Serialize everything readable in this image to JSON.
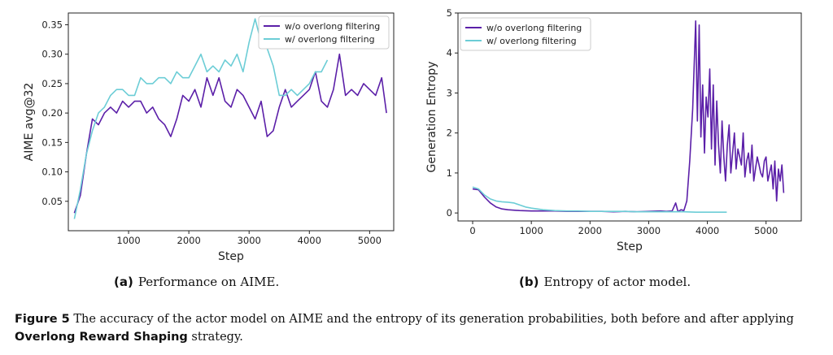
{
  "figure": {
    "subcaption_a_label": "(a)",
    "subcaption_a_text": "Performance on AIME.",
    "subcaption_b_label": "(b)",
    "subcaption_b_text": "Entropy of actor model.",
    "caption_label": "Figure 5",
    "caption_text_1": "The accuracy of the actor model on AIME and the entropy of its generation probabilities, both before and after applying",
    "caption_bold": "Overlong Reward Shaping",
    "caption_text_2": "strategy."
  },
  "chart_data": [
    {
      "type": "line",
      "title": "",
      "xlabel": "Step",
      "ylabel": "AIME avg@32",
      "xlim": [
        0,
        5400
      ],
      "ylim": [
        0.0,
        0.37
      ],
      "xticks": [
        1000,
        2000,
        3000,
        4000,
        5000
      ],
      "yticks": [
        0.05,
        0.1,
        0.15,
        0.2,
        0.25,
        0.3,
        0.35
      ],
      "legend_position": "top-right",
      "series": [
        {
          "name": "w/o overlong filtering",
          "color": "#5b1fa8",
          "x": [
            100,
            200,
            300,
            400,
            500,
            600,
            700,
            800,
            900,
            1000,
            1100,
            1200,
            1300,
            1400,
            1500,
            1600,
            1700,
            1800,
            1900,
            2000,
            2100,
            2200,
            2300,
            2400,
            2500,
            2600,
            2700,
            2800,
            2900,
            3000,
            3100,
            3200,
            3300,
            3400,
            3500,
            3600,
            3700,
            3800,
            3900,
            4000,
            4100,
            4200,
            4300,
            4400,
            4500,
            4600,
            4700,
            4800,
            4900,
            5000,
            5100,
            5200,
            5280
          ],
          "y": [
            0.03,
            0.06,
            0.13,
            0.19,
            0.18,
            0.2,
            0.21,
            0.2,
            0.22,
            0.21,
            0.22,
            0.22,
            0.2,
            0.21,
            0.19,
            0.18,
            0.16,
            0.19,
            0.23,
            0.22,
            0.24,
            0.21,
            0.26,
            0.23,
            0.26,
            0.22,
            0.21,
            0.24,
            0.23,
            0.21,
            0.19,
            0.22,
            0.16,
            0.17,
            0.21,
            0.24,
            0.21,
            0.22,
            0.23,
            0.24,
            0.27,
            0.22,
            0.21,
            0.24,
            0.3,
            0.23,
            0.24,
            0.23,
            0.25,
            0.24,
            0.23,
            0.26,
            0.2
          ]
        },
        {
          "name": "w/ overlong filtering",
          "color": "#6ccdd6",
          "x": [
            100,
            200,
            300,
            400,
            500,
            600,
            700,
            800,
            900,
            1000,
            1100,
            1200,
            1300,
            1400,
            1500,
            1600,
            1700,
            1800,
            1900,
            2000,
            2100,
            2200,
            2300,
            2400,
            2500,
            2600,
            2700,
            2800,
            2900,
            3000,
            3100,
            3200,
            3300,
            3400,
            3500,
            3600,
            3700,
            3800,
            3900,
            4000,
            4100,
            4200,
            4300
          ],
          "y": [
            0.02,
            0.07,
            0.13,
            0.17,
            0.2,
            0.21,
            0.23,
            0.24,
            0.24,
            0.23,
            0.23,
            0.26,
            0.25,
            0.25,
            0.26,
            0.26,
            0.25,
            0.27,
            0.26,
            0.26,
            0.28,
            0.3,
            0.27,
            0.28,
            0.27,
            0.29,
            0.28,
            0.3,
            0.27,
            0.32,
            0.36,
            0.32,
            0.31,
            0.28,
            0.23,
            0.23,
            0.24,
            0.23,
            0.24,
            0.25,
            0.27,
            0.27,
            0.29
          ]
        }
      ]
    },
    {
      "type": "line",
      "title": "",
      "xlabel": "Step",
      "ylabel": "Generation Entropy",
      "xlim": [
        -250,
        5600
      ],
      "ylim": [
        -0.2,
        5.0
      ],
      "xticks": [
        0,
        1000,
        2000,
        3000,
        4000,
        5000
      ],
      "yticks": [
        0,
        1,
        2,
        3,
        4,
        5
      ],
      "legend_position": "top-left",
      "series": [
        {
          "name": "w/o overlong filtering",
          "color": "#5b1fa8",
          "x": [
            0,
            100,
            200,
            300,
            400,
            500,
            600,
            800,
            1000,
            1200,
            1400,
            1600,
            1800,
            2000,
            2200,
            2400,
            2600,
            2800,
            3000,
            3200,
            3300,
            3400,
            3460,
            3500,
            3550,
            3600,
            3650,
            3700,
            3750,
            3800,
            3830,
            3860,
            3890,
            3920,
            3950,
            3980,
            4010,
            4040,
            4070,
            4100,
            4130,
            4160,
            4190,
            4220,
            4250,
            4280,
            4310,
            4340,
            4370,
            4400,
            4430,
            4460,
            4490,
            4520,
            4550,
            4580,
            4610,
            4640,
            4670,
            4700,
            4730,
            4760,
            4790,
            4820,
            4850,
            4880,
            4910,
            4940,
            4970,
            5000,
            5030,
            5060,
            5090,
            5120,
            5150,
            5180,
            5210,
            5240,
            5270,
            5300
          ],
          "y": [
            0.6,
            0.58,
            0.4,
            0.25,
            0.15,
            0.1,
            0.08,
            0.06,
            0.05,
            0.05,
            0.05,
            0.04,
            0.04,
            0.04,
            0.04,
            0.03,
            0.04,
            0.03,
            0.04,
            0.05,
            0.04,
            0.05,
            0.25,
            0.03,
            0.08,
            0.06,
            0.3,
            1.3,
            2.6,
            4.8,
            2.3,
            4.7,
            1.9,
            3.2,
            1.5,
            2.9,
            2.4,
            3.6,
            1.6,
            3.2,
            1.2,
            2.8,
            1.7,
            1.0,
            2.3,
            1.4,
            0.8,
            1.7,
            2.2,
            1.0,
            1.5,
            2.0,
            1.1,
            1.6,
            1.4,
            1.2,
            2.0,
            0.9,
            1.3,
            1.5,
            1.0,
            1.7,
            0.8,
            1.1,
            1.4,
            1.2,
            1.0,
            0.9,
            1.3,
            1.4,
            0.8,
            1.0,
            1.2,
            0.6,
            1.3,
            0.3,
            1.1,
            0.8,
            1.2,
            0.5
          ]
        },
        {
          "name": "w/ overlong filtering",
          "color": "#6ccdd6",
          "x": [
            0,
            100,
            200,
            300,
            400,
            500,
            600,
            700,
            800,
            900,
            1000,
            1200,
            1400,
            1600,
            1800,
            2000,
            2200,
            2400,
            2600,
            2800,
            3000,
            3200,
            3400,
            3600,
            3800,
            4000,
            4200,
            4330
          ],
          "y": [
            0.65,
            0.6,
            0.45,
            0.35,
            0.3,
            0.28,
            0.27,
            0.25,
            0.2,
            0.15,
            0.12,
            0.08,
            0.06,
            0.05,
            0.05,
            0.04,
            0.04,
            0.04,
            0.04,
            0.03,
            0.03,
            0.03,
            0.03,
            0.03,
            0.02,
            0.02,
            0.02,
            0.02
          ]
        }
      ]
    }
  ]
}
